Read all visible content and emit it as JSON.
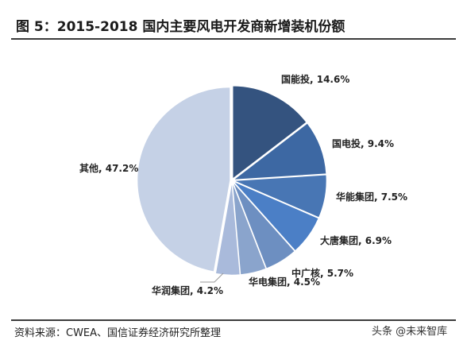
{
  "title": "图 5：2015-2018 国内主要风电开发商新增装机份额",
  "source": "资料来源：CWEA、国信证券经济研究所整理",
  "watermark": "头条 @未来智库",
  "chart_data": {
    "type": "pie",
    "slices": [
      {
        "label": "国能投, 14.6%",
        "value": 14.6,
        "color": "#34537f"
      },
      {
        "label": "国电投, 9.4%",
        "value": 9.4,
        "color": "#3d68a3"
      },
      {
        "label": "华能集团, 7.5%",
        "value": 7.5,
        "color": "#4876b4"
      },
      {
        "label": "大唐集团, 6.9%",
        "value": 6.9,
        "color": "#4b7fc6"
      },
      {
        "label": "中广核, 5.7%",
        "value": 5.7,
        "color": "#6d8fc1"
      },
      {
        "label": "华电集团, 4.5%",
        "value": 4.5,
        "color": "#8aa4cc"
      },
      {
        "label": "华润集团, 4.2%",
        "value": 4.2,
        "color": "#a9badb"
      },
      {
        "label": "其他, 47.2%",
        "value": 47.2,
        "color": "#c5d1e6"
      }
    ]
  }
}
